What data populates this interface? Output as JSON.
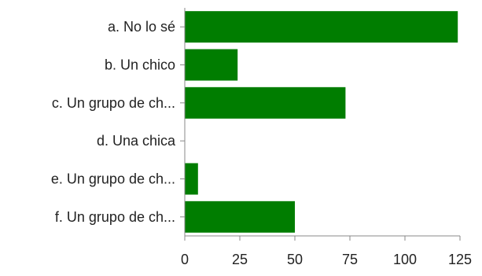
{
  "chart_data": {
    "type": "bar",
    "orientation": "horizontal",
    "categories": [
      "a. No lo sé",
      "b. Un chico",
      "c. Un grupo de ch...",
      "d. Una chica",
      "e. Un grupo de ch...",
      "f. Un grupo de ch..."
    ],
    "values": [
      124,
      24,
      73,
      0,
      6,
      50
    ],
    "xlim": [
      0,
      125
    ],
    "xticks": [
      0,
      25,
      50,
      75,
      100,
      125
    ],
    "grid": false,
    "bar_color": "#007d00",
    "axis_color": "#888888"
  }
}
